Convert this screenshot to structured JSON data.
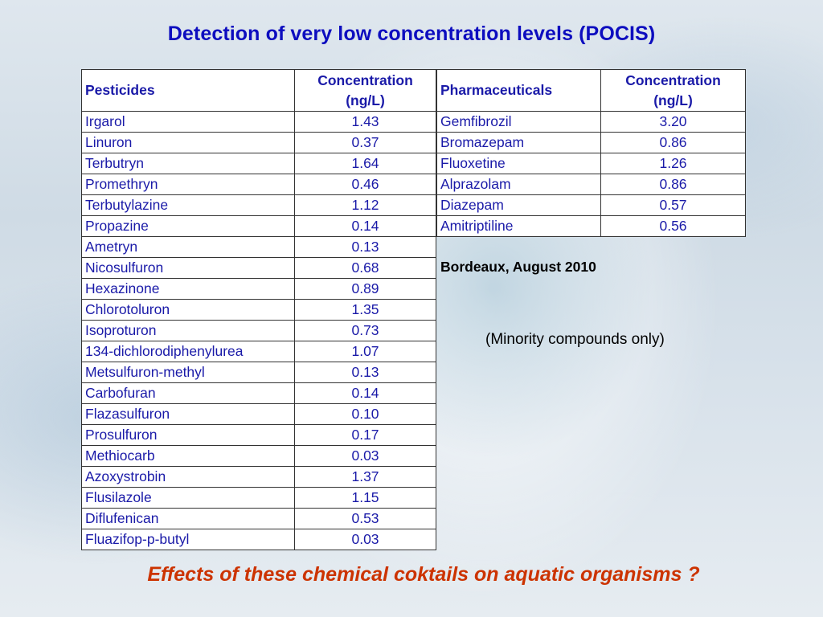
{
  "title": "Detection of very low concentration levels (POCIS)",
  "pesticides_table": {
    "header_name": "Pesticides",
    "header_conc": [
      "Concentration",
      "(ng/L)"
    ],
    "rows": [
      {
        "name": "Irgarol",
        "value": "1.43"
      },
      {
        "name": "Linuron",
        "value": "0.37"
      },
      {
        "name": "Terbutryn",
        "value": "1.64"
      },
      {
        "name": "Promethryn",
        "value": "0.46"
      },
      {
        "name": "Terbutylazine",
        "value": "1.12"
      },
      {
        "name": "Propazine",
        "value": "0.14"
      },
      {
        "name": "Ametryn",
        "value": "0.13"
      },
      {
        "name": "Nicosulfuron",
        "value": "0.68"
      },
      {
        "name": "Hexazinone",
        "value": "0.89"
      },
      {
        "name": "Chlorotoluron",
        "value": "1.35"
      },
      {
        "name": "Isoproturon",
        "value": "0.73"
      },
      {
        "name": "134-dichlorodiphenylurea",
        "value": "1.07"
      },
      {
        "name": "Metsulfuron-methyl",
        "value": "0.13"
      },
      {
        "name": "Carbofuran",
        "value": "0.14"
      },
      {
        "name": "Flazasulfuron",
        "value": "0.10"
      },
      {
        "name": "Prosulfuron",
        "value": "0.17"
      },
      {
        "name": "Methiocarb",
        "value": "0.03"
      },
      {
        "name": "Azoxystrobin",
        "value": "1.37"
      },
      {
        "name": "Flusilazole",
        "value": "1.15"
      },
      {
        "name": "Diflufenican",
        "value": "0.53"
      },
      {
        "name": "Fluazifop-p-butyl",
        "value": "0.03"
      }
    ]
  },
  "pharmaceuticals_table": {
    "header_name": "Pharmaceuticals",
    "header_conc": [
      "Concentration",
      "(ng/L)"
    ],
    "rows": [
      {
        "name": "Gemfibrozil",
        "value": "3.20"
      },
      {
        "name": "Bromazepam",
        "value": "0.86"
      },
      {
        "name": "Fluoxetine",
        "value": "1.26"
      },
      {
        "name": "Alprazolam",
        "value": "0.86"
      },
      {
        "name": "Diazepam",
        "value": "0.57"
      },
      {
        "name": "Amitriptiline",
        "value": "0.56"
      }
    ]
  },
  "note_location_date": "Bordeaux, August 2010",
  "note_minority": "(Minority compounds only)",
  "footer_question": "Effects of these chemical coktails on aquatic organisms ?",
  "colors": {
    "title": "#0d0dbf",
    "table_text": "#1a1aa8",
    "footer": "#cc3300"
  }
}
